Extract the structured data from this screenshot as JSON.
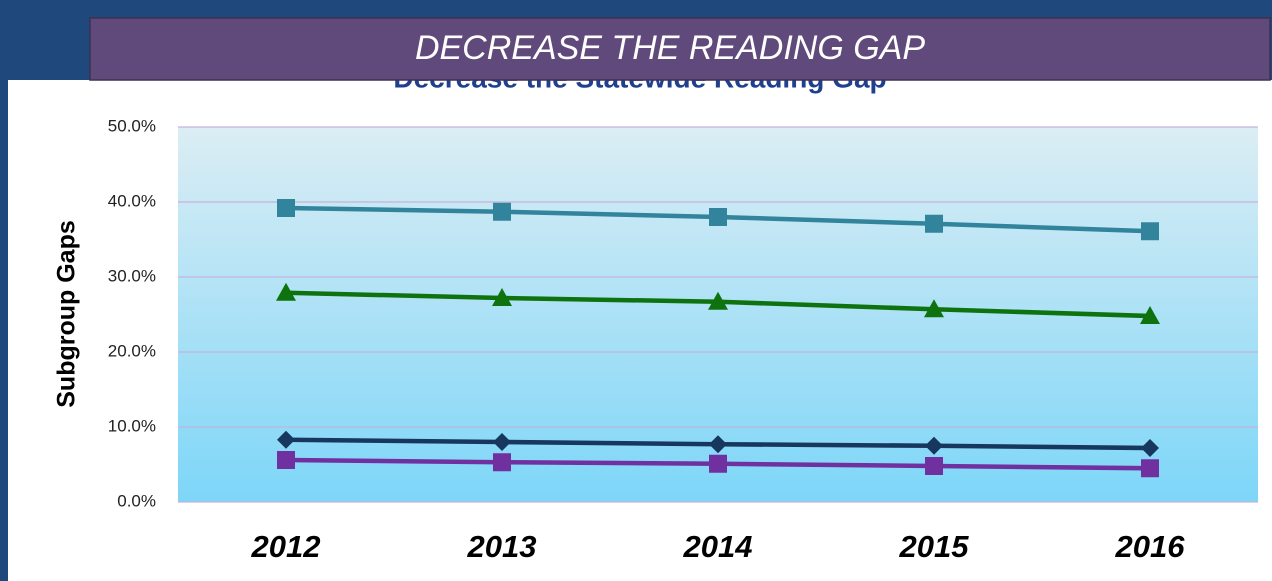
{
  "banner": "DECREASE THE READING GAP",
  "chart_data": {
    "type": "line",
    "title": "Decrease the Statewide Reading Gap",
    "y_label": "Subgroup Gaps",
    "categories": [
      "2012",
      "2013",
      "2014",
      "2015",
      "2016"
    ],
    "ylim": [
      0,
      50
    ],
    "yticks": [
      {
        "value": 0,
        "label": "0.0%"
      },
      {
        "value": 10,
        "label": "10.0%"
      },
      {
        "value": 20,
        "label": "20.0%"
      },
      {
        "value": 30,
        "label": "30.0%"
      },
      {
        "value": 40,
        "label": "40.0%"
      },
      {
        "value": 50,
        "label": "50.0%"
      }
    ],
    "grid": true,
    "series": [
      {
        "color": "#31849b",
        "marker": "square",
        "values": [
          39.2,
          38.7,
          38.0,
          37.1,
          36.1
        ]
      },
      {
        "color": "#0e730e",
        "marker": "triangle",
        "values": [
          27.9,
          27.2,
          26.7,
          25.7,
          24.8
        ]
      },
      {
        "color": "#17375e",
        "marker": "diamond",
        "values": [
          8.3,
          8.0,
          7.7,
          7.5,
          7.2
        ]
      },
      {
        "color": "#7030a0",
        "marker": "square",
        "values": [
          5.6,
          5.3,
          5.1,
          4.8,
          4.5
        ]
      }
    ]
  }
}
